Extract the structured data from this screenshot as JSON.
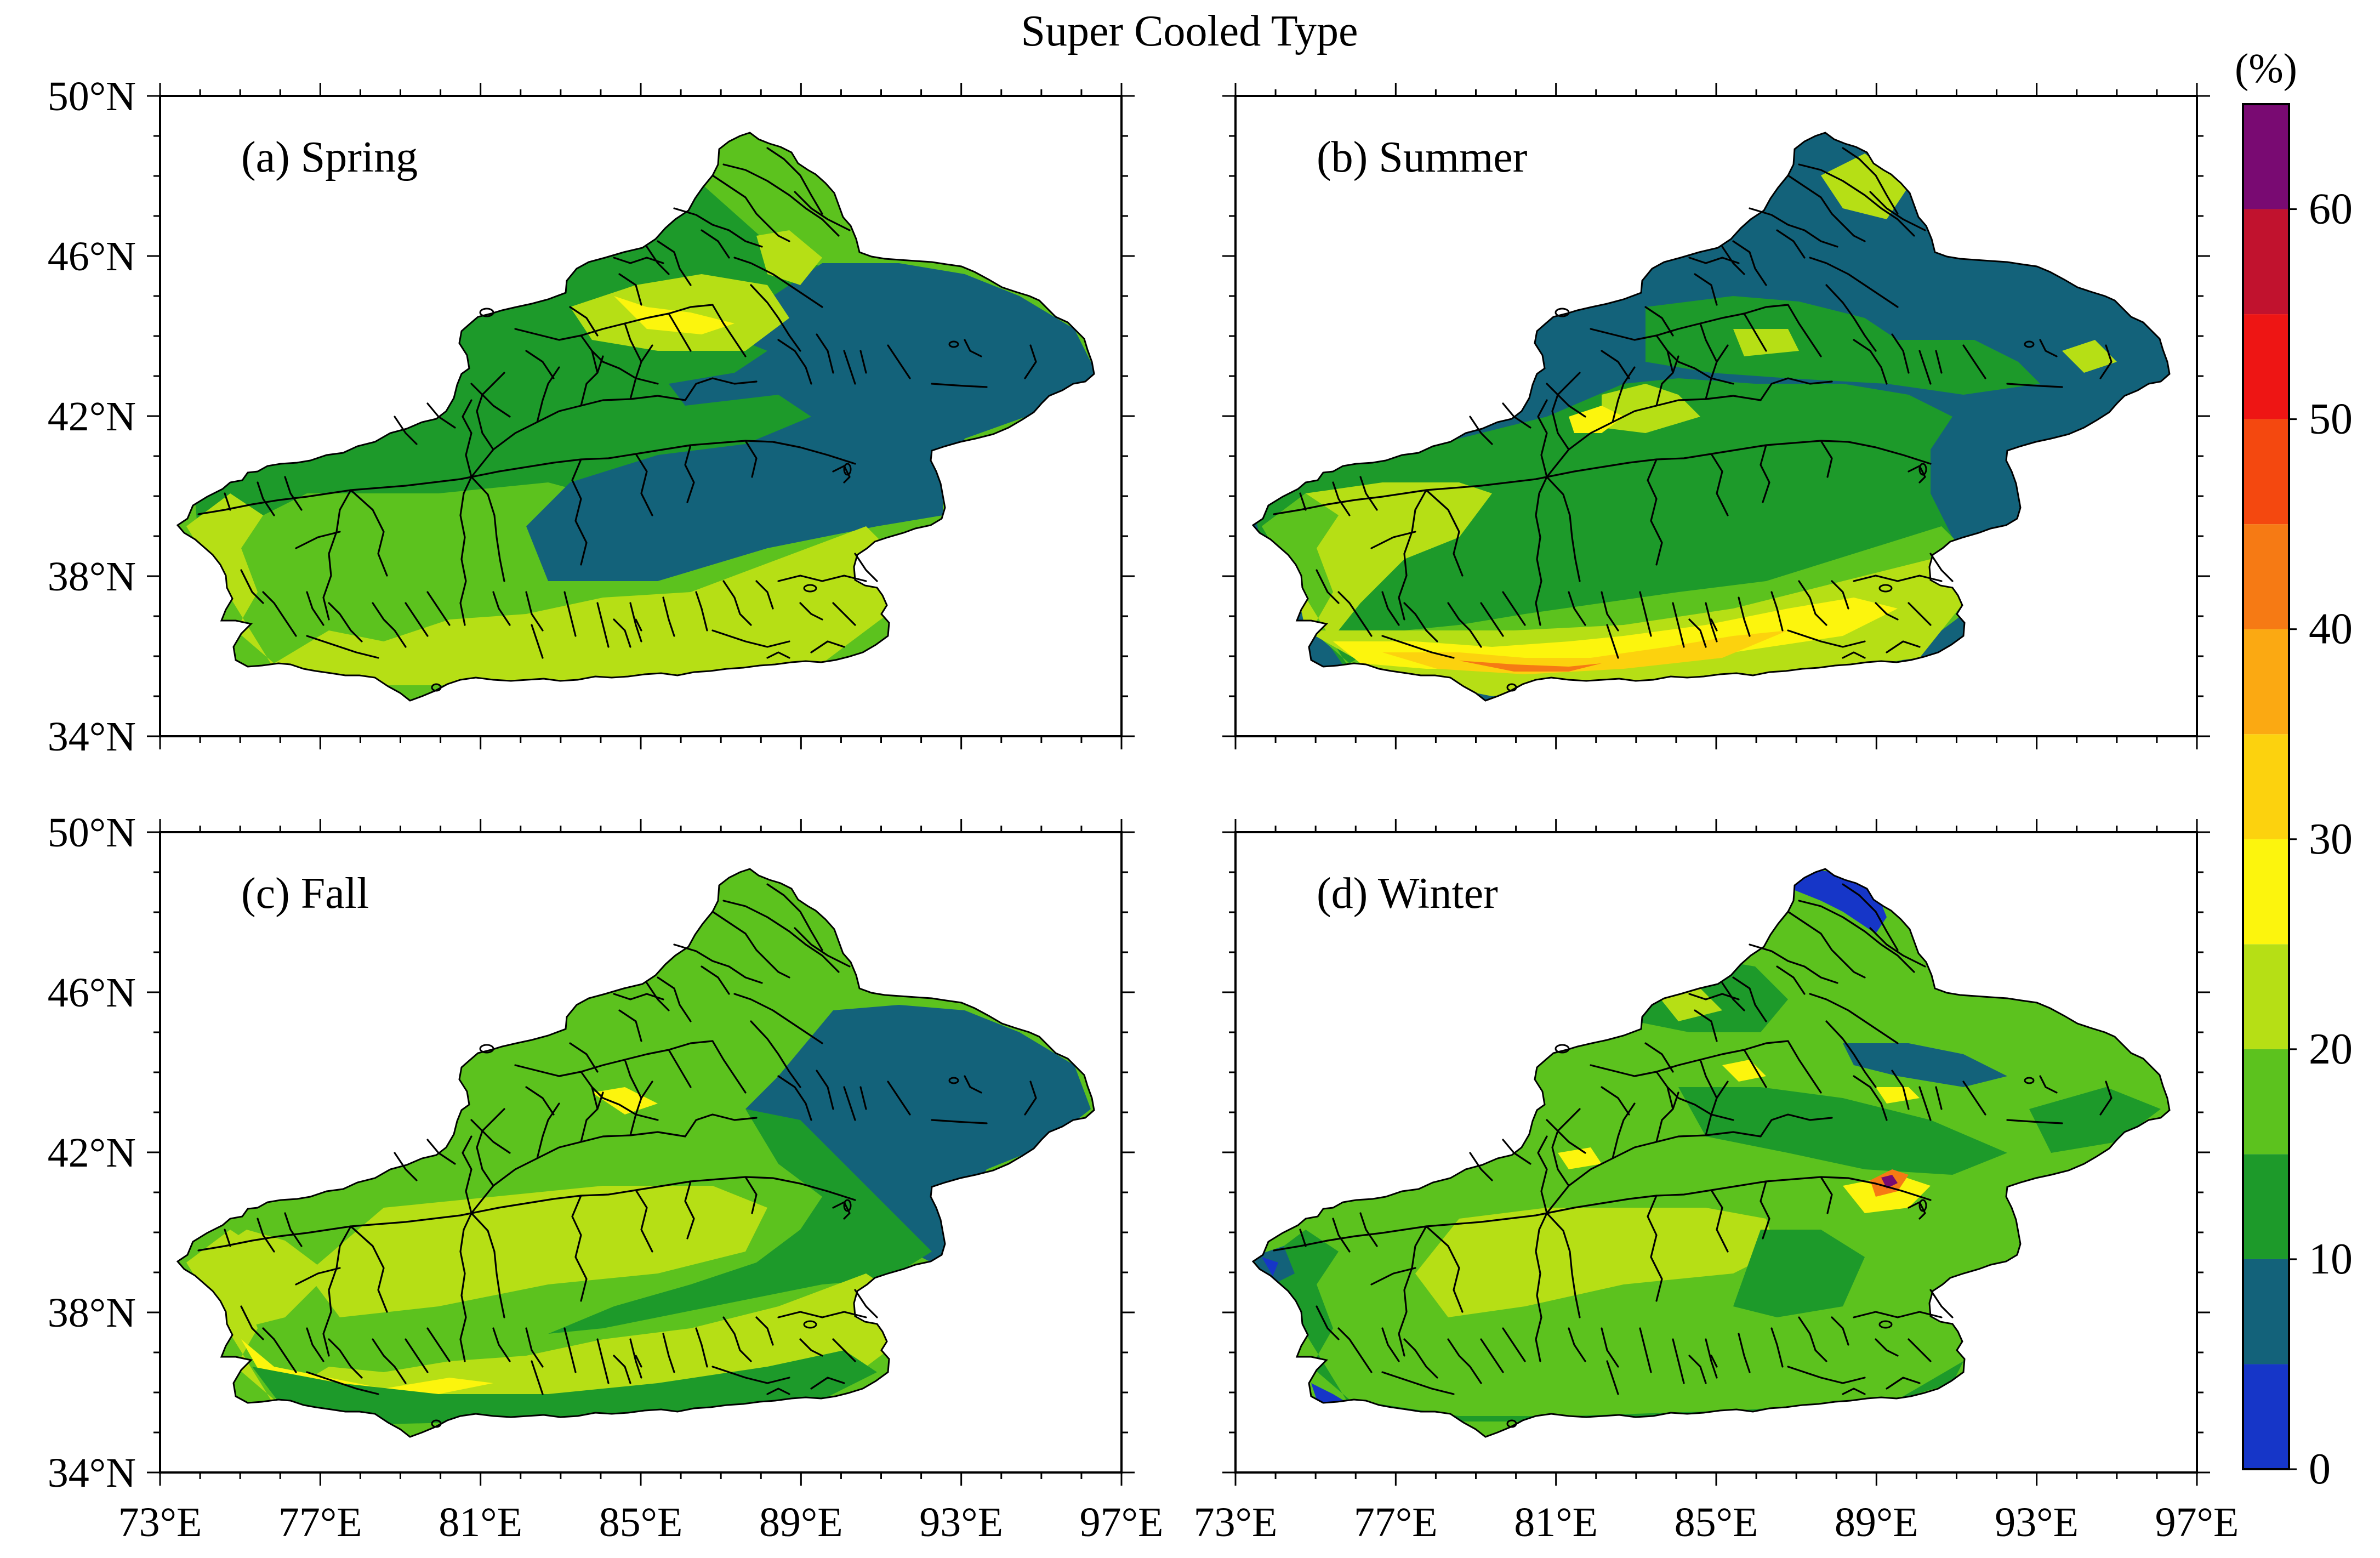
{
  "title": "Super Cooled Type",
  "colorbar": {
    "unit": "(%)",
    "tick_labels": [
      "0",
      "10",
      "20",
      "30",
      "40",
      "50",
      "60"
    ],
    "tick_values": [
      0,
      10,
      20,
      30,
      40,
      50,
      60
    ],
    "range": [
      0,
      65
    ],
    "bins": [
      {
        "from": 0,
        "to": 5,
        "color": "#1636c8"
      },
      {
        "from": 5,
        "to": 10,
        "color": "#13627a"
      },
      {
        "from": 10,
        "to": 15,
        "color": "#1d9a2a"
      },
      {
        "from": 15,
        "to": 20,
        "color": "#5cc21e"
      },
      {
        "from": 20,
        "to": 25,
        "color": "#b6df15"
      },
      {
        "from": 25,
        "to": 30,
        "color": "#fcf50d"
      },
      {
        "from": 30,
        "to": 35,
        "color": "#fcd20e"
      },
      {
        "from": 35,
        "to": 40,
        "color": "#fba912"
      },
      {
        "from": 40,
        "to": 45,
        "color": "#f67a14"
      },
      {
        "from": 45,
        "to": 50,
        "color": "#f4480f"
      },
      {
        "from": 50,
        "to": 55,
        "color": "#ee1514"
      },
      {
        "from": 55,
        "to": 60,
        "color": "#c1122e"
      },
      {
        "from": 60,
        "to": 65,
        "color": "#790a72"
      }
    ]
  },
  "axes": {
    "lon_range": [
      73,
      97
    ],
    "lat_range": [
      34,
      50
    ],
    "x_tick_labels": [
      "73°E",
      "77°E",
      "81°E",
      "85°E",
      "89°E",
      "93°E",
      "97°E"
    ],
    "y_tick_labels": [
      "50°N",
      "46°N",
      "42°N",
      "38°N",
      "34°N"
    ]
  },
  "panels": [
    {
      "id": "a",
      "label": "(a) Spring"
    },
    {
      "id": "b",
      "label": "(b) Summer"
    },
    {
      "id": "c",
      "label": "(c) Fall"
    },
    {
      "id": "d",
      "label": "(d) Winter"
    }
  ]
}
